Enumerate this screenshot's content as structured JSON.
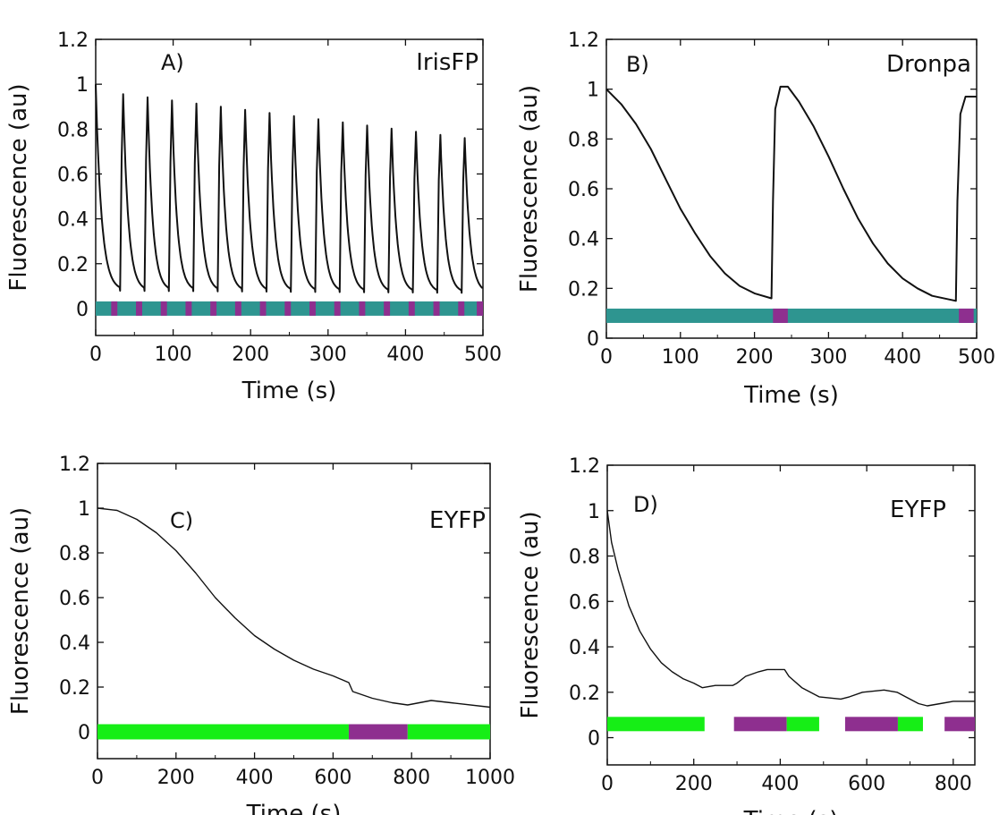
{
  "colors": {
    "teal": "#2e9590",
    "purple": "#8e2f8f",
    "green": "#16ee16",
    "line": "#111111"
  },
  "chart_data": [
    {
      "type": "line",
      "panel_label": "A)",
      "protein": "IrisFP",
      "xlabel": "Time (s)",
      "ylabel": "Fluorescence (au)",
      "xlim": [
        0,
        500
      ],
      "ylim": [
        -0.12,
        1.2
      ],
      "xticks": [
        "0",
        "100",
        "200",
        "300",
        "400",
        "500"
      ],
      "yticks": [
        "0",
        "0.2",
        "0.4",
        "0.6",
        "0.8",
        "1",
        "1.2"
      ],
      "cycles": {
        "count": 16,
        "period_s": 31.5,
        "peak_start": 0.97,
        "peak_end": 0.76,
        "min_start": 0.08,
        "min_end": 0.07
      },
      "illumination": [
        {
          "color": "teal",
          "start": 0,
          "end": 500
        },
        {
          "color": "purple",
          "start": 20,
          "end": 28
        },
        {
          "color": "purple",
          "start": 52,
          "end": 60
        },
        {
          "color": "purple",
          "start": 84,
          "end": 92
        },
        {
          "color": "purple",
          "start": 116,
          "end": 124
        },
        {
          "color": "purple",
          "start": 148,
          "end": 156
        },
        {
          "color": "purple",
          "start": 180,
          "end": 188
        },
        {
          "color": "purple",
          "start": 212,
          "end": 220
        },
        {
          "color": "purple",
          "start": 244,
          "end": 252
        },
        {
          "color": "purple",
          "start": 276,
          "end": 284
        },
        {
          "color": "purple",
          "start": 308,
          "end": 316
        },
        {
          "color": "purple",
          "start": 340,
          "end": 348
        },
        {
          "color": "purple",
          "start": 372,
          "end": 380
        },
        {
          "color": "purple",
          "start": 404,
          "end": 412
        },
        {
          "color": "purple",
          "start": 436,
          "end": 444
        },
        {
          "color": "purple",
          "start": 468,
          "end": 476
        },
        {
          "color": "purple",
          "start": 492,
          "end": 500
        }
      ],
      "bar_y": 0
    },
    {
      "type": "line",
      "panel_label": "B)",
      "protein": "Dronpa",
      "xlabel": "Time (s)",
      "ylabel": "Fluorescence (au)",
      "xlim": [
        0,
        500
      ],
      "ylim": [
        0,
        1.2
      ],
      "xticks": [
        "0",
        "100",
        "200",
        "300",
        "400",
        "500"
      ],
      "yticks": [
        "0",
        "0.2",
        "0.4",
        "0.6",
        "0.8",
        "1",
        "1.2"
      ],
      "points": [
        [
          0,
          1.0
        ],
        [
          20,
          0.94
        ],
        [
          40,
          0.86
        ],
        [
          60,
          0.76
        ],
        [
          80,
          0.64
        ],
        [
          100,
          0.52
        ],
        [
          120,
          0.42
        ],
        [
          140,
          0.33
        ],
        [
          160,
          0.26
        ],
        [
          180,
          0.21
        ],
        [
          200,
          0.18
        ],
        [
          223,
          0.16
        ],
        [
          225,
          0.55
        ],
        [
          228,
          0.92
        ],
        [
          235,
          1.01
        ],
        [
          245,
          1.01
        ],
        [
          260,
          0.95
        ],
        [
          280,
          0.85
        ],
        [
          300,
          0.73
        ],
        [
          320,
          0.6
        ],
        [
          340,
          0.48
        ],
        [
          360,
          0.38
        ],
        [
          380,
          0.3
        ],
        [
          400,
          0.24
        ],
        [
          420,
          0.2
        ],
        [
          440,
          0.17
        ],
        [
          472,
          0.15
        ],
        [
          474,
          0.55
        ],
        [
          478,
          0.9
        ],
        [
          485,
          0.97
        ],
        [
          500,
          0.97
        ]
      ],
      "illumination": [
        {
          "color": "teal",
          "start": 0,
          "end": 500
        },
        {
          "color": "purple",
          "start": 225,
          "end": 245
        },
        {
          "color": "purple",
          "start": 476,
          "end": 496
        }
      ],
      "bar_y": 0.09
    },
    {
      "type": "line",
      "panel_label": "C)",
      "protein": "EYFP",
      "xlabel": "Time (s)",
      "ylabel": "Fluorescence (au)",
      "xlim": [
        0,
        1000
      ],
      "ylim": [
        -0.12,
        1.2
      ],
      "xticks": [
        "0",
        "200",
        "400",
        "600",
        "800",
        "1000"
      ],
      "yticks": [
        "0",
        "0.2",
        "0.4",
        "0.6",
        "0.8",
        "1",
        "1.2"
      ],
      "points": [
        [
          0,
          1.0
        ],
        [
          50,
          0.99
        ],
        [
          100,
          0.95
        ],
        [
          150,
          0.89
        ],
        [
          200,
          0.81
        ],
        [
          250,
          0.71
        ],
        [
          300,
          0.6
        ],
        [
          350,
          0.51
        ],
        [
          400,
          0.43
        ],
        [
          450,
          0.37
        ],
        [
          500,
          0.32
        ],
        [
          550,
          0.28
        ],
        [
          600,
          0.25
        ],
        [
          640,
          0.22
        ],
        [
          650,
          0.18
        ],
        [
          700,
          0.15
        ],
        [
          750,
          0.13
        ],
        [
          790,
          0.12
        ],
        [
          850,
          0.14
        ],
        [
          900,
          0.13
        ],
        [
          1000,
          0.11
        ]
      ],
      "illumination": [
        {
          "color": "green",
          "start": 0,
          "end": 640
        },
        {
          "color": "purple",
          "start": 640,
          "end": 790
        },
        {
          "color": "green",
          "start": 790,
          "end": 1000
        }
      ],
      "bar_y": 0
    },
    {
      "type": "line",
      "panel_label": "D)",
      "protein": "EYFP",
      "xlabel": "Time (s)",
      "ylabel": "Fluorescence (au)",
      "xlim": [
        0,
        850
      ],
      "ylim": [
        -0.12,
        1.2
      ],
      "xticks": [
        "0",
        "200",
        "400",
        "600",
        "800"
      ],
      "yticks": [
        "0",
        "0.2",
        "0.4",
        "0.6",
        "0.8",
        "1",
        "1.2"
      ],
      "points": [
        [
          0,
          1.0
        ],
        [
          10,
          0.86
        ],
        [
          25,
          0.74
        ],
        [
          50,
          0.58
        ],
        [
          75,
          0.47
        ],
        [
          100,
          0.39
        ],
        [
          125,
          0.33
        ],
        [
          150,
          0.29
        ],
        [
          175,
          0.26
        ],
        [
          200,
          0.24
        ],
        [
          220,
          0.22
        ],
        [
          250,
          0.23
        ],
        [
          290,
          0.23
        ],
        [
          300,
          0.24
        ],
        [
          320,
          0.27
        ],
        [
          350,
          0.29
        ],
        [
          370,
          0.3
        ],
        [
          410,
          0.3
        ],
        [
          420,
          0.27
        ],
        [
          450,
          0.22
        ],
        [
          490,
          0.18
        ],
        [
          540,
          0.17
        ],
        [
          560,
          0.18
        ],
        [
          590,
          0.2
        ],
        [
          640,
          0.21
        ],
        [
          670,
          0.2
        ],
        [
          690,
          0.18
        ],
        [
          720,
          0.15
        ],
        [
          740,
          0.14
        ],
        [
          770,
          0.15
        ],
        [
          800,
          0.16
        ],
        [
          850,
          0.16
        ]
      ],
      "illumination": [
        {
          "color": "green",
          "start": 0,
          "end": 225
        },
        {
          "color": "purple",
          "start": 293,
          "end": 415
        },
        {
          "color": "green",
          "start": 415,
          "end": 490
        },
        {
          "color": "purple",
          "start": 550,
          "end": 672
        },
        {
          "color": "green",
          "start": 672,
          "end": 730
        },
        {
          "color": "purple",
          "start": 780,
          "end": 850
        }
      ],
      "bar_y": 0.06
    }
  ]
}
